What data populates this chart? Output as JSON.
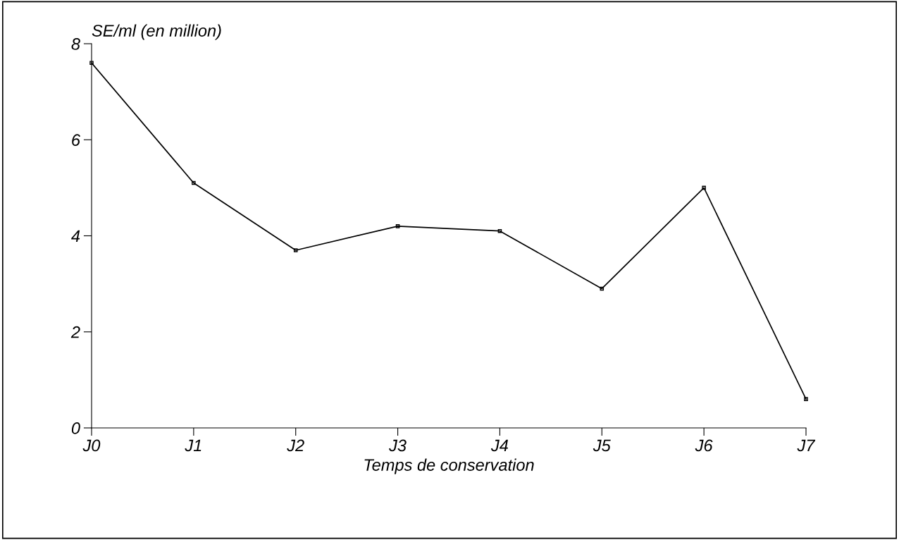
{
  "chart_data": {
    "type": "line",
    "ylabel": "SE/ml (en million)",
    "xlabel": "Temps de conservation",
    "categories": [
      "J0",
      "J1",
      "J2",
      "J3",
      "J4",
      "J5",
      "J6",
      "J7"
    ],
    "values": [
      7.6,
      5.1,
      3.7,
      4.2,
      4.1,
      2.9,
      5.0,
      0.6
    ],
    "color": "#000000",
    "marker": "square",
    "line_style": "solid",
    "ylim": [
      0,
      8
    ],
    "yticks": [
      0,
      2,
      4,
      6,
      8
    ],
    "grid": false,
    "legend": false
  }
}
